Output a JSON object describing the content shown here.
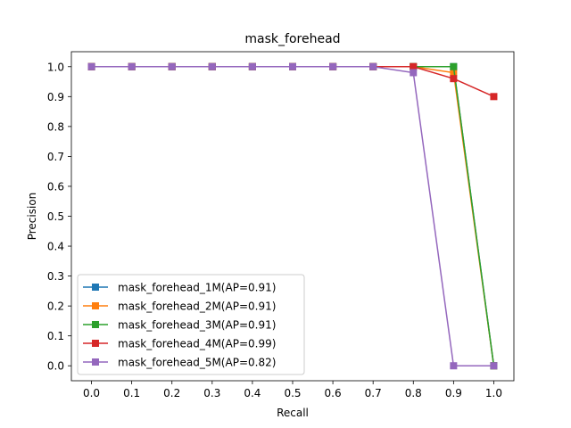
{
  "chart_data": {
    "type": "line",
    "title": "mask_forehead",
    "xlabel": "Recall",
    "ylabel": "Precision",
    "xlim": [
      -0.05,
      1.05
    ],
    "ylim": [
      -0.05,
      1.05
    ],
    "xticks": [
      0.0,
      0.1,
      0.2,
      0.3,
      0.4,
      0.5,
      0.6,
      0.7,
      0.8,
      0.9,
      1.0
    ],
    "yticks": [
      0.0,
      0.1,
      0.2,
      0.3,
      0.4,
      0.5,
      0.6,
      0.7,
      0.8,
      0.9,
      1.0
    ],
    "grid": false,
    "legend_position": "lower-left",
    "x": [
      0.0,
      0.1,
      0.2,
      0.3,
      0.4,
      0.5,
      0.6,
      0.7,
      0.8,
      0.9,
      1.0
    ],
    "series": [
      {
        "name": "mask_forehead_1M(AP=0.91)",
        "color": "#1f77b4",
        "marker": "square",
        "values": [
          1.0,
          1.0,
          1.0,
          1.0,
          1.0,
          1.0,
          1.0,
          1.0,
          1.0,
          1.0,
          0.0
        ]
      },
      {
        "name": "mask_forehead_2M(AP=0.91)",
        "color": "#ff7f0e",
        "marker": "square",
        "values": [
          1.0,
          1.0,
          1.0,
          1.0,
          1.0,
          1.0,
          1.0,
          1.0,
          1.0,
          0.98,
          0.0
        ]
      },
      {
        "name": "mask_forehead_3M(AP=0.91)",
        "color": "#2ca02c",
        "marker": "square",
        "values": [
          1.0,
          1.0,
          1.0,
          1.0,
          1.0,
          1.0,
          1.0,
          1.0,
          1.0,
          1.0,
          0.0
        ]
      },
      {
        "name": "mask_forehead_4M(AP=0.99)",
        "color": "#d62728",
        "marker": "square",
        "values": [
          1.0,
          1.0,
          1.0,
          1.0,
          1.0,
          1.0,
          1.0,
          1.0,
          1.0,
          0.96,
          0.9
        ]
      },
      {
        "name": "mask_forehead_5M(AP=0.82)",
        "color": "#9467bd",
        "marker": "square",
        "values": [
          1.0,
          1.0,
          1.0,
          1.0,
          1.0,
          1.0,
          1.0,
          1.0,
          0.98,
          0.0,
          0.0
        ]
      }
    ]
  }
}
